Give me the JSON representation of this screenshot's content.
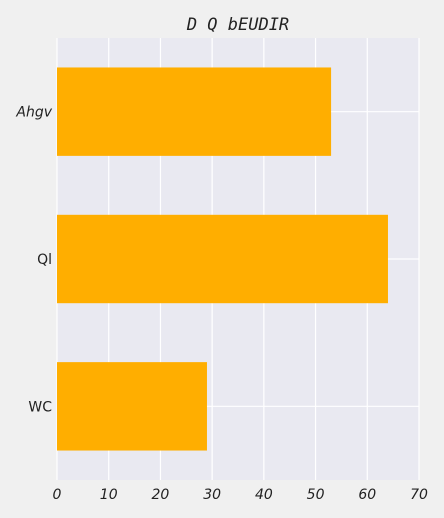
{
  "chart_data": {
    "type": "bar",
    "orientation": "horizontal",
    "title": "D Q bEUDIR",
    "xlabel": "",
    "ylabel": "",
    "categories": [
      "Ahgv",
      "Ql",
      "WC"
    ],
    "values": [
      53,
      64,
      29
    ],
    "xlim": [
      0,
      70
    ],
    "xticks": [
      0,
      10,
      20,
      30,
      40,
      50,
      60,
      70
    ],
    "grid": true,
    "legend": "none",
    "colors": {
      "bar": "#ffae00",
      "plot_background": "#e9e9f1",
      "figure_background": "#f0f0f0",
      "grid": "#ffffff"
    }
  }
}
